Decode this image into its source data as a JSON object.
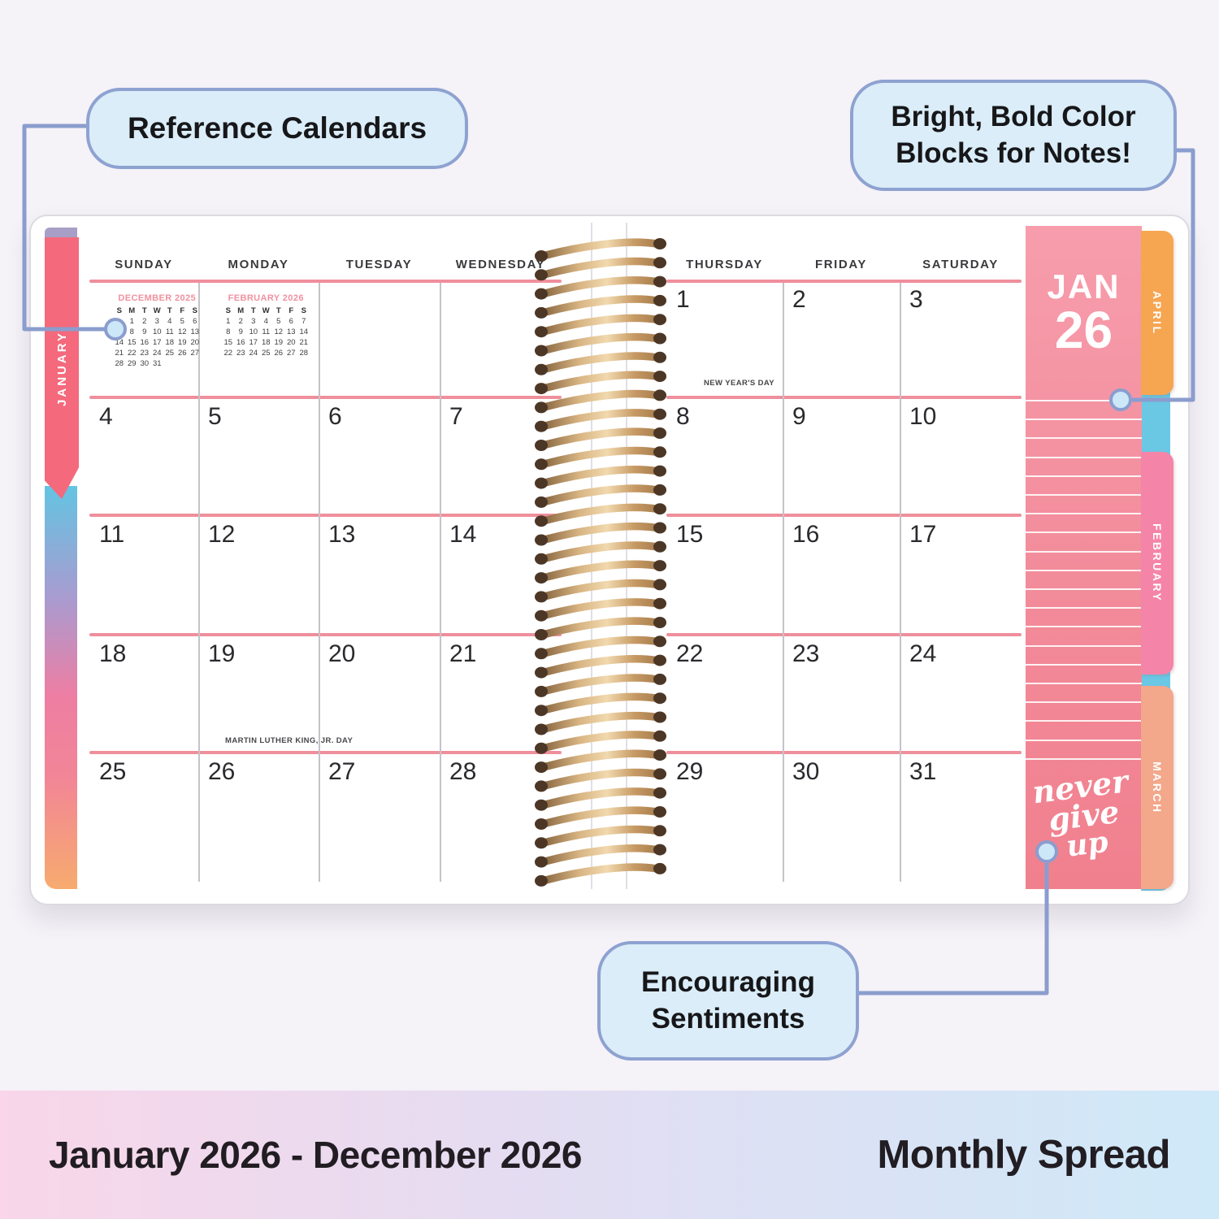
{
  "callouts": {
    "reference": "Reference Calendars",
    "color_blocks": "Bright, Bold Color Blocks for Notes!",
    "sentiments_line1": "Encouraging",
    "sentiments_line2": "Sentiments"
  },
  "footer": {
    "date_range": "January 2026 - December 2026",
    "spread_type": "Monthly Spread"
  },
  "planner": {
    "month_tab": {
      "month": "JAN",
      "year": "26"
    },
    "quote": {
      "line1": "never",
      "line2": "give",
      "line3": "up"
    },
    "side_tabs": {
      "left": "JANUARY",
      "right": [
        "APRIL",
        "FEBRUARY",
        "MARCH"
      ]
    },
    "left_day_headers": [
      "SUNDAY",
      "MONDAY",
      "TUESDAY",
      "WEDNESDAY"
    ],
    "right_day_headers": [
      "THURSDAY",
      "FRIDAY",
      "SATURDAY"
    ],
    "left_page_rows": [
      [
        "4",
        "5",
        "6",
        "7"
      ],
      [
        "11",
        "12",
        "13",
        "14"
      ],
      [
        "18",
        "19",
        "20",
        "21"
      ],
      [
        "25",
        "26",
        "27",
        "28"
      ]
    ],
    "right_page_rows": [
      [
        "1",
        "2",
        "3"
      ],
      [
        "8",
        "9",
        "10"
      ],
      [
        "15",
        "16",
        "17"
      ],
      [
        "22",
        "23",
        "24"
      ],
      [
        "29",
        "30",
        "31"
      ]
    ],
    "holidays": {
      "new_years": "NEW YEAR'S DAY",
      "mlk": "MARTIN LUTHER KING, JR. DAY"
    },
    "mini_calendars": [
      {
        "title": "DECEMBER 2025",
        "day_letters": [
          "S",
          "M",
          "T",
          "W",
          "T",
          "F",
          "S"
        ],
        "weeks": [
          [
            "",
            "1",
            "2",
            "3",
            "4",
            "5",
            "6"
          ],
          [
            "7",
            "8",
            "9",
            "10",
            "11",
            "12",
            "13"
          ],
          [
            "14",
            "15",
            "16",
            "17",
            "18",
            "19",
            "20"
          ],
          [
            "21",
            "22",
            "23",
            "24",
            "25",
            "26",
            "27"
          ],
          [
            "28",
            "29",
            "30",
            "31",
            "",
            "",
            ""
          ]
        ]
      },
      {
        "title": "FEBRUARY 2026",
        "day_letters": [
          "S",
          "M",
          "T",
          "W",
          "T",
          "F",
          "S"
        ],
        "weeks": [
          [
            "1",
            "2",
            "3",
            "4",
            "5",
            "6",
            "7"
          ],
          [
            "8",
            "9",
            "10",
            "11",
            "12",
            "13",
            "14"
          ],
          [
            "15",
            "16",
            "17",
            "18",
            "19",
            "20",
            "21"
          ],
          [
            "22",
            "23",
            "24",
            "25",
            "26",
            "27",
            "28"
          ]
        ]
      }
    ]
  },
  "colors": {
    "week_line_pink": "#ef8f9c",
    "sidebar_pink_top": "#f79dac",
    "sidebar_pink_bottom": "#f1808e",
    "tab_january": "#f4697c",
    "tab_april": "#f6a551",
    "tab_february": "#f584a9",
    "tab_march": "#f3a78b",
    "page_edge_blue": "#6ac8e5",
    "coil_gold": "#d8b482",
    "callout_fill": "#daedf8",
    "callout_border": "#8ea2d1",
    "connector": "#8b9dce",
    "footer_pink": "#f9d6e9",
    "footer_blue": "#cfe9f8"
  }
}
